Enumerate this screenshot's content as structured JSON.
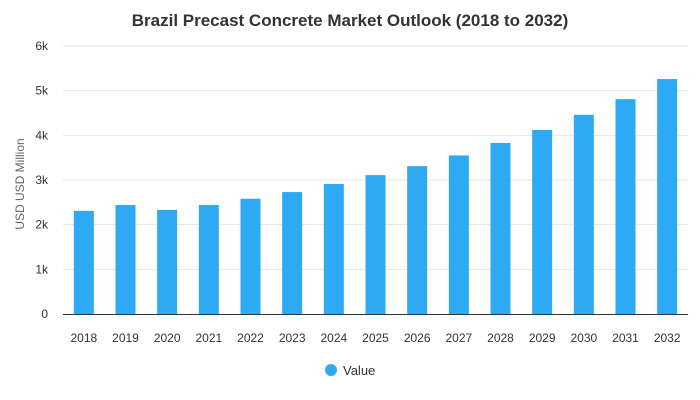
{
  "chart_data": {
    "type": "bar",
    "title": "Brazil Precast Concrete Market Outlook (2018 to 2032)",
    "xlabel": "",
    "ylabel": "USD USD Million",
    "ylim": [
      0,
      6000
    ],
    "yticks": [
      0,
      1000,
      2000,
      3000,
      4000,
      5000,
      6000
    ],
    "ytick_labels": [
      "0",
      "1k",
      "2k",
      "3k",
      "4k",
      "5k",
      "6k"
    ],
    "grid": true,
    "legend_position": "bottom",
    "categories": [
      "2018",
      "2019",
      "2020",
      "2021",
      "2022",
      "2023",
      "2024",
      "2025",
      "2026",
      "2027",
      "2028",
      "2029",
      "2030",
      "2031",
      "2032"
    ],
    "series": [
      {
        "name": "Value",
        "color": "#2eaaf5",
        "values": [
          2310,
          2440,
          2330,
          2440,
          2580,
          2730,
          2910,
          3110,
          3310,
          3550,
          3830,
          4120,
          4460,
          4810,
          5260
        ]
      }
    ]
  }
}
